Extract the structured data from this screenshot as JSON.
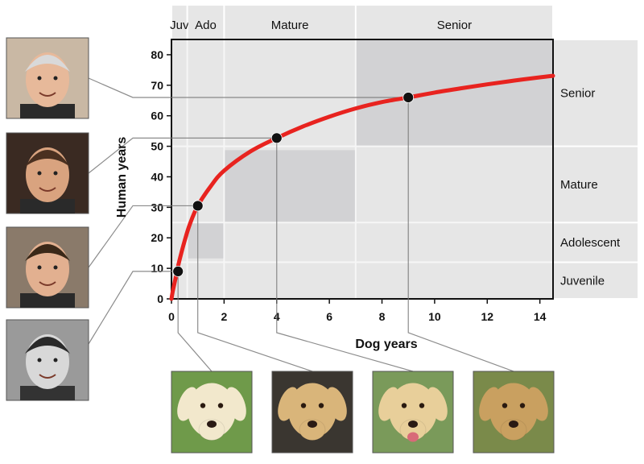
{
  "chart_data": {
    "type": "line",
    "xlabel": "Dog years",
    "ylabel": "Human years",
    "xlim": [
      0,
      14.5
    ],
    "ylim": [
      0,
      85
    ],
    "x_ticks": [
      0,
      2,
      4,
      6,
      8,
      10,
      12,
      14
    ],
    "y_ticks": [
      0,
      10,
      20,
      30,
      40,
      50,
      60,
      70,
      80
    ],
    "series": [
      {
        "color": "#e8231f",
        "curve_points": [
          {
            "x": 0.0,
            "y": 0
          },
          {
            "x": 0.05,
            "y": 2.5
          },
          {
            "x": 0.1,
            "y": 4.5
          },
          {
            "x": 0.2,
            "y": 8.6
          },
          {
            "x": 0.3,
            "y": 12.5
          },
          {
            "x": 0.5,
            "y": 19
          },
          {
            "x": 0.7,
            "y": 24.5
          },
          {
            "x": 1.0,
            "y": 30.5
          },
          {
            "x": 1.5,
            "y": 37
          },
          {
            "x": 2.0,
            "y": 42
          },
          {
            "x": 3.0,
            "y": 48.3
          },
          {
            "x": 4.0,
            "y": 52.7
          },
          {
            "x": 5.0,
            "y": 56.5
          },
          {
            "x": 6.0,
            "y": 59.7
          },
          {
            "x": 7.0,
            "y": 62.4
          },
          {
            "x": 8.0,
            "y": 64.5
          },
          {
            "x": 9.0,
            "y": 66
          },
          {
            "x": 10.0,
            "y": 67.6
          },
          {
            "x": 11.0,
            "y": 69
          },
          {
            "x": 12.0,
            "y": 70.3
          },
          {
            "x": 13.0,
            "y": 71.5
          },
          {
            "x": 14.0,
            "y": 72.6
          },
          {
            "x": 14.5,
            "y": 73.1
          }
        ]
      }
    ],
    "markers": [
      {
        "x": 0.25,
        "y": 9
      },
      {
        "x": 1.0,
        "y": 30.5
      },
      {
        "x": 4.0,
        "y": 52.7
      },
      {
        "x": 9.0,
        "y": 66
      }
    ],
    "dog_stages": [
      {
        "label": "Juv",
        "x_from": 0,
        "x_to": 0.6
      },
      {
        "label": "Ado",
        "x_from": 0.6,
        "x_to": 2
      },
      {
        "label": "Mature",
        "x_from": 2,
        "x_to": 7
      },
      {
        "label": "Senior",
        "x_from": 7,
        "x_to": 14.5
      }
    ],
    "human_stages": [
      {
        "label": "Juvenile",
        "y_from": 0,
        "y_to": 12
      },
      {
        "label": "Adolescent",
        "y_from": 12,
        "y_to": 25
      },
      {
        "label": "Mature",
        "y_from": 25,
        "y_to": 50
      },
      {
        "label": "Senior",
        "y_from": 50,
        "y_to": 85
      }
    ],
    "shaded_regions": [
      {
        "x_from": 0.6,
        "x_to": 2,
        "y_from": 13,
        "y_to": 25
      },
      {
        "x_from": 2,
        "x_to": 7,
        "y_from": 25,
        "y_to": 49
      },
      {
        "x_from": 7,
        "x_to": 14.5,
        "y_from": 50,
        "y_to": 85
      }
    ],
    "grid": false,
    "legend": "none"
  },
  "colors": {
    "curve": "#e8231f",
    "band": "#e6e6e6",
    "shade": "#d2d2d4",
    "axis": "#111111"
  },
  "photos": {
    "humans": [
      {
        "icon": "older-man-photo",
        "bg": "#c9b8a4",
        "skin": "#e7b99a",
        "hair": "#d9d9d9"
      },
      {
        "icon": "adult-man-photo",
        "bg": "#3a2a22",
        "skin": "#d9a37f",
        "hair": "#4a3020"
      },
      {
        "icon": "young-man-photo",
        "bg": "#8a7a6a",
        "skin": "#e2b090",
        "hair": "#3a2818"
      },
      {
        "icon": "boy-photo",
        "bg": "#9a9a9a",
        "skin": "#d8d8d8",
        "hair": "#2a2a2a"
      }
    ],
    "dogs": [
      {
        "icon": "puppy-photo",
        "bg": "#6f9a4a",
        "fur": "#f2e8cc"
      },
      {
        "icon": "young-dog-photo",
        "bg": "#3a3630",
        "fur": "#d9b57a"
      },
      {
        "icon": "adult-dog-photo",
        "bg": "#7a9a5a",
        "fur": "#e8cf9a"
      },
      {
        "icon": "senior-dog-photo",
        "bg": "#7a8a4a",
        "fur": "#c9a060"
      }
    ]
  }
}
